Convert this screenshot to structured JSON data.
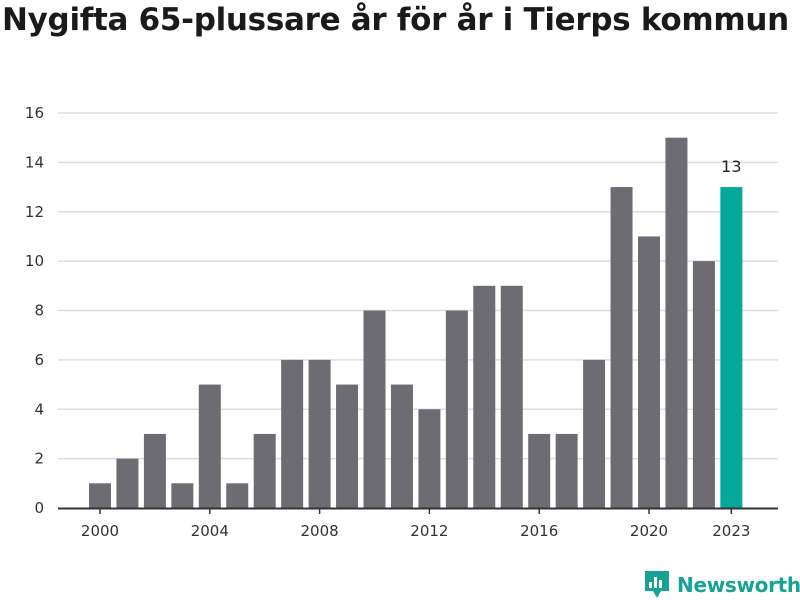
{
  "title": "Nygifta 65-plussare år för år i Tierps kommun",
  "brand": {
    "name": "Newsworthy",
    "icon": "chart-badge-icon",
    "color": "#16a394"
  },
  "colors": {
    "bar": "#6d6c72",
    "highlight": "#04a99a",
    "grid": "#dedede",
    "axis": "#333333"
  },
  "chart_data": {
    "type": "bar",
    "title": "Nygifta 65-plussare år för år i Tierps kommun",
    "xlabel": "",
    "ylabel": "",
    "categories": [
      2000,
      2001,
      2002,
      2003,
      2004,
      2005,
      2006,
      2007,
      2008,
      2009,
      2010,
      2011,
      2012,
      2013,
      2014,
      2015,
      2016,
      2017,
      2018,
      2019,
      2020,
      2021,
      2022,
      2023
    ],
    "values": [
      1,
      2,
      3,
      1,
      5,
      1,
      3,
      6,
      6,
      5,
      8,
      5,
      4,
      8,
      9,
      9,
      3,
      3,
      6,
      13,
      11,
      15,
      10,
      13
    ],
    "ylim": [
      0,
      16
    ],
    "yticks": [
      0,
      2,
      4,
      6,
      8,
      10,
      12,
      14,
      16
    ],
    "xticks": [
      2000,
      2004,
      2008,
      2012,
      2016,
      2020,
      2023
    ],
    "highlight": {
      "category": 2023,
      "label": "13"
    },
    "grid": "horizontal",
    "legend": "none"
  }
}
